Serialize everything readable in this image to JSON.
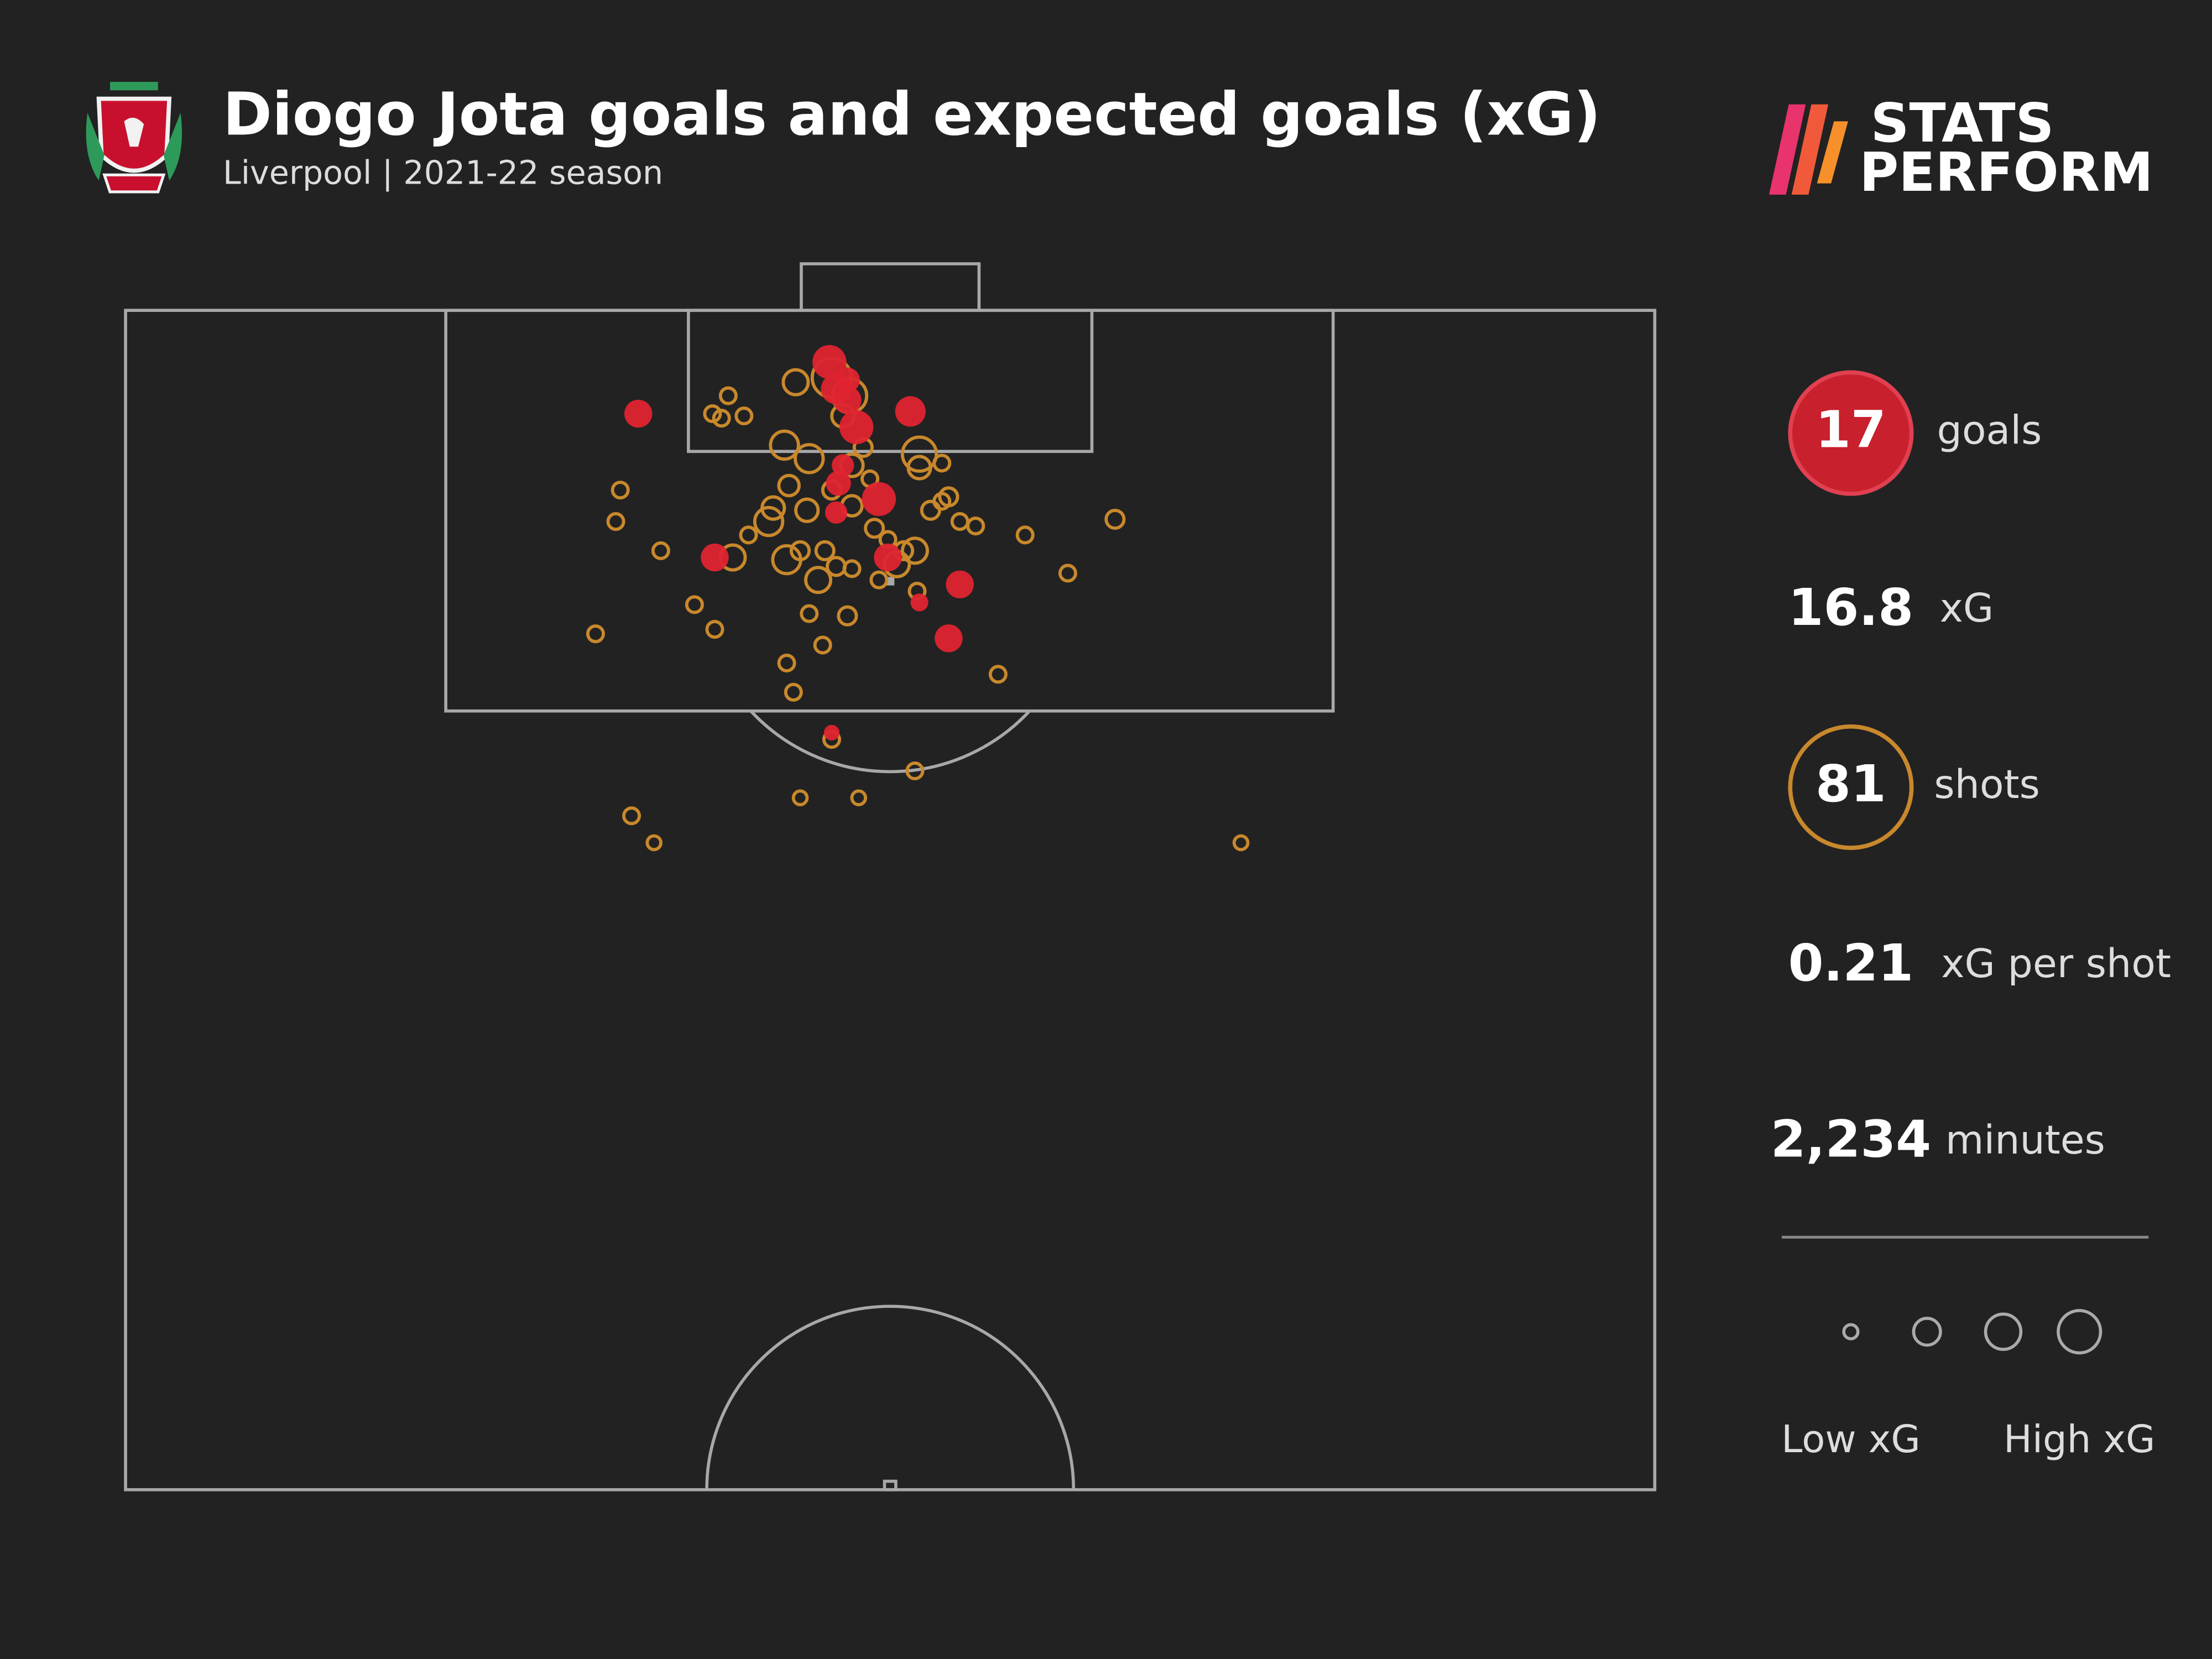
{
  "header": {
    "title": "Diogo Jota goals and expected goals (xG)",
    "subtitle": "Liverpool | 2021-22 season"
  },
  "logo": {
    "lines": [
      "STATS",
      "PERFORM"
    ]
  },
  "chart_data": {
    "type": "scatter",
    "xlim": [
      0,
      68
    ],
    "ylim": [
      0,
      52.5
    ],
    "series": [
      {
        "color": "#c8882c",
        "filled": false,
        "x": [
          26.8,
          26.1,
          26.5,
          27.5,
          29.8,
          31.4,
          32.2,
          29.3,
          30.4,
          32.3,
          35.3,
          36.3,
          35.3,
          22.0,
          21.8,
          28.8,
          28.6,
          30.3,
          32.3,
          36.3,
          36.6,
          37.1,
          37.8,
          40.0,
          44.0,
          23.8,
          27.0,
          29.4,
          30.0,
          31.6,
          32.3,
          33.9,
          35.1,
          34.3,
          30.8,
          35.2,
          41.9,
          25.3,
          30.4,
          32.1,
          26.2,
          20.9,
          31.0,
          29.4,
          29.7,
          38.8,
          31.4,
          35.1,
          30.0,
          32.6,
          22.5,
          23.5,
          49.6,
          31.4,
          33.1,
          31.1,
          33.5,
          32.8,
          35.8,
          34.6,
          31.9,
          29.5,
          33.3,
          27.7
        ],
        "values": [
          3.8,
          4.6,
          4.8,
          4.7,
          3.2,
          3.0,
          3.8,
          6.0,
          6.6,
          6.9,
          6.4,
          6.8,
          7.0,
          8.0,
          9.4,
          8.8,
          9.4,
          8.9,
          8.7,
          8.5,
          8.3,
          9.4,
          9.6,
          10.0,
          9.3,
          10.7,
          11.0,
          11.1,
          10.7,
          11.4,
          11.5,
          10.2,
          10.7,
          11.3,
          12.0,
          12.5,
          11.7,
          13.1,
          13.5,
          13.6,
          14.2,
          14.4,
          14.9,
          15.7,
          17.0,
          16.2,
          19.1,
          20.5,
          21.7,
          21.7,
          22.5,
          23.7,
          23.7,
          8.0,
          7.5,
          10.7,
          12.0,
          6.1,
          8.9,
          10.7,
          4.7,
          7.8,
          9.7,
          10.0
        ],
        "sizes": [
          0.05,
          0.05,
          0.05,
          0.05,
          0.22,
          0.7,
          0.5,
          0.3,
          0.3,
          0.16,
          0.5,
          0.05,
          0.16,
          0.05,
          0.05,
          0.16,
          0.3,
          0.16,
          0.12,
          0.05,
          0.08,
          0.05,
          0.05,
          0.05,
          0.08,
          0.05,
          0.22,
          0.3,
          0.08,
          0.08,
          0.05,
          0.05,
          0.22,
          0.22,
          0.22,
          0.05,
          0.05,
          0.05,
          0.05,
          0.08,
          0.05,
          0.05,
          0.05,
          0.05,
          0.05,
          0.05,
          0.05,
          0.05,
          0.03,
          0.03,
          0.05,
          0.03,
          0.03,
          0.08,
          0.05,
          0.08,
          0.05,
          0.08,
          0.08,
          0.08,
          0.16,
          0.12,
          0.08,
          0.05
        ]
      },
      {
        "color": "#df2430",
        "filled": true,
        "x": [
          31.3,
          31.6,
          32.1,
          32.5,
          34.9,
          22.8,
          33.5,
          31.7,
          31.6,
          26.2,
          33.9,
          37.1,
          35.3,
          36.6,
          31.4,
          32.1,
          31.9
        ],
        "values": [
          2.3,
          3.5,
          4.0,
          5.2,
          4.5,
          4.6,
          8.4,
          7.7,
          9.0,
          11.0,
          11.0,
          12.2,
          13.0,
          14.6,
          18.8,
          3.1,
          6.9
        ],
        "sizes": [
          0.5,
          0.38,
          0.3,
          0.5,
          0.38,
          0.3,
          0.5,
          0.22,
          0.16,
          0.3,
          0.3,
          0.3,
          0.08,
          0.3,
          0.05,
          0.22,
          0.16
        ]
      }
    ]
  },
  "stats": [
    {
      "value": 17,
      "label": "goals"
    },
    {
      "value": 16.8,
      "label": "xG"
    },
    {
      "value": 81,
      "label": "shots"
    },
    {
      "value": 0.21,
      "label": "xG per shot"
    },
    {
      "value": 2234,
      "value_label": "2,234",
      "label": "minutes"
    }
  ],
  "size_legend": [
    "Low xG",
    "High xG"
  ]
}
